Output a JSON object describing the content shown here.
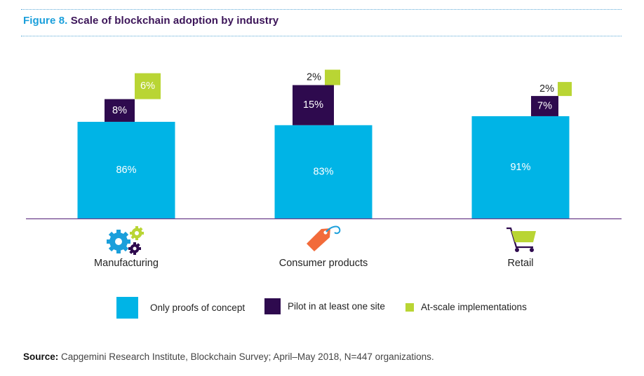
{
  "figure": {
    "number": "Figure 8.",
    "title": "Scale of blockchain adoption by industry"
  },
  "chart_data": {
    "type": "bar",
    "stacked": false,
    "categories": [
      "Manufacturing",
      "Consumer products",
      "Retail"
    ],
    "series": [
      {
        "name": "Only proofs of concept",
        "values": [
          86,
          83,
          91
        ],
        "labels": [
          "86%",
          "83%",
          "91%"
        ],
        "color": "#00b4e6"
      },
      {
        "name": "Pilot in at least one site",
        "values": [
          8,
          15,
          7
        ],
        "labels": [
          "8%",
          "15%",
          "7%"
        ],
        "color": "#2e0a4e"
      },
      {
        "name": "At-scale implementations",
        "values": [
          6,
          2,
          2
        ],
        "labels": [
          "6%",
          "2%",
          "2%"
        ],
        "color": "#b9d534"
      }
    ],
    "legend_position": "bottom",
    "grid": false
  },
  "category_icons": [
    "gears-icon",
    "price-tag-icon",
    "shopping-cart-icon"
  ],
  "source": {
    "label": "Source:",
    "text": " Capgemini Research Institute, Blockchain Survey; April–May 2018, N=447 organizations."
  }
}
